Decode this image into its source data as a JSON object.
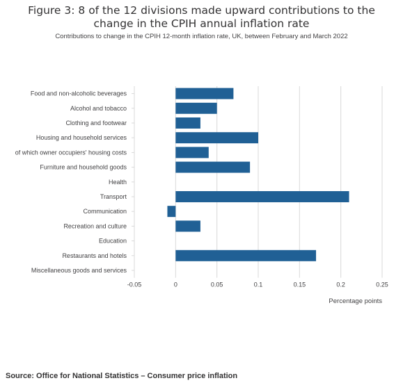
{
  "title": "Figure 3: 8 of the 12 divisions made upward contributions to the change in the CPIH annual inflation rate",
  "subtitle": "Contributions to change in the CPIH 12-month inflation rate, UK, between February and March 2022",
  "source": "Source: Office for National Statistics – Consumer price inflation",
  "colors": {
    "bar": "#206095",
    "grid": "#d9d9d9",
    "text": "#414042"
  },
  "chart_data": {
    "type": "bar",
    "orientation": "horizontal",
    "categories": [
      "Food and non-alcoholic beverages",
      "Alcohol and tobacco",
      "Clothing and footwear",
      "Housing and household services",
      "of which owner occupiers' housing costs",
      "Furniture and household goods",
      "Health",
      "Transport",
      "Communication",
      "Recreation and culture",
      "Education",
      "Restaurants and hotels",
      "Miscellaneous goods and services"
    ],
    "values": [
      0.07,
      0.05,
      0.03,
      0.1,
      0.04,
      0.09,
      0,
      0.21,
      -0.01,
      0.03,
      0,
      0.17,
      0
    ],
    "xlabel": "Percentage points",
    "xlim": [
      -0.05,
      0.25
    ],
    "ticks": [
      -0.05,
      0,
      0.05,
      0.1,
      0.15,
      0.2,
      0.25
    ],
    "tick_labels": [
      "-0.05",
      "0",
      "0.05",
      "0.1",
      "0.15",
      "0.2",
      "0.25"
    ],
    "grid": true
  }
}
